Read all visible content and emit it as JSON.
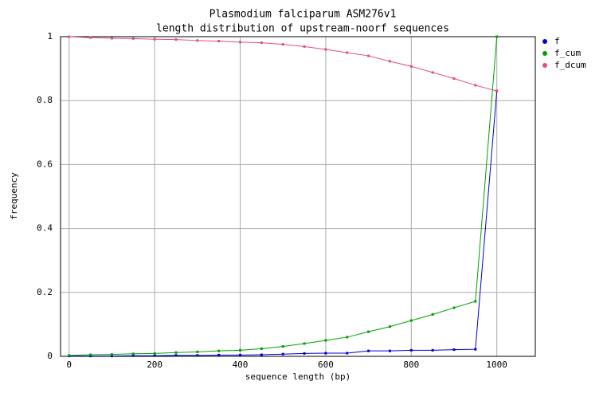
{
  "chart_data": {
    "type": "line",
    "title": "Plasmodium falciparum ASM276v1",
    "subtitle": "length distribution of upstream-noorf sequences",
    "x_label": "sequence length (bp)",
    "y_label": "frequency",
    "x": [
      0,
      50,
      100,
      150,
      200,
      250,
      300,
      350,
      400,
      450,
      500,
      550,
      600,
      650,
      700,
      750,
      800,
      850,
      900,
      950,
      1000
    ],
    "series": [
      {
        "name": "f",
        "color": "#0000cc",
        "values": [
          0.001,
          0.001,
          0.001,
          0.002,
          0.002,
          0.003,
          0.003,
          0.004,
          0.004,
          0.005,
          0.007,
          0.009,
          0.01,
          0.01,
          0.017,
          0.017,
          0.019,
          0.019,
          0.021,
          0.022,
          0.83
        ]
      },
      {
        "name": "f_cum",
        "color": "#00a000",
        "values": [
          0.003,
          0.005,
          0.006,
          0.008,
          0.009,
          0.012,
          0.014,
          0.017,
          0.019,
          0.024,
          0.031,
          0.04,
          0.05,
          0.06,
          0.077,
          0.093,
          0.112,
          0.131,
          0.152,
          0.172,
          1.0
        ]
      },
      {
        "name": "f_dcum",
        "color": "#e0507a",
        "values": [
          1.0,
          0.997,
          0.995,
          0.994,
          0.992,
          0.991,
          0.988,
          0.986,
          0.983,
          0.981,
          0.976,
          0.969,
          0.96,
          0.95,
          0.94,
          0.923,
          0.907,
          0.888,
          0.869,
          0.848,
          0.83
        ]
      }
    ],
    "xlim": [
      -20,
      1090
    ],
    "xticks": [
      0,
      200,
      400,
      600,
      800,
      1000
    ],
    "ylim": [
      0,
      1
    ],
    "yticks": [
      0,
      0.2,
      0.4,
      0.6,
      0.8,
      1
    ],
    "grid": true,
    "legend": "right"
  }
}
